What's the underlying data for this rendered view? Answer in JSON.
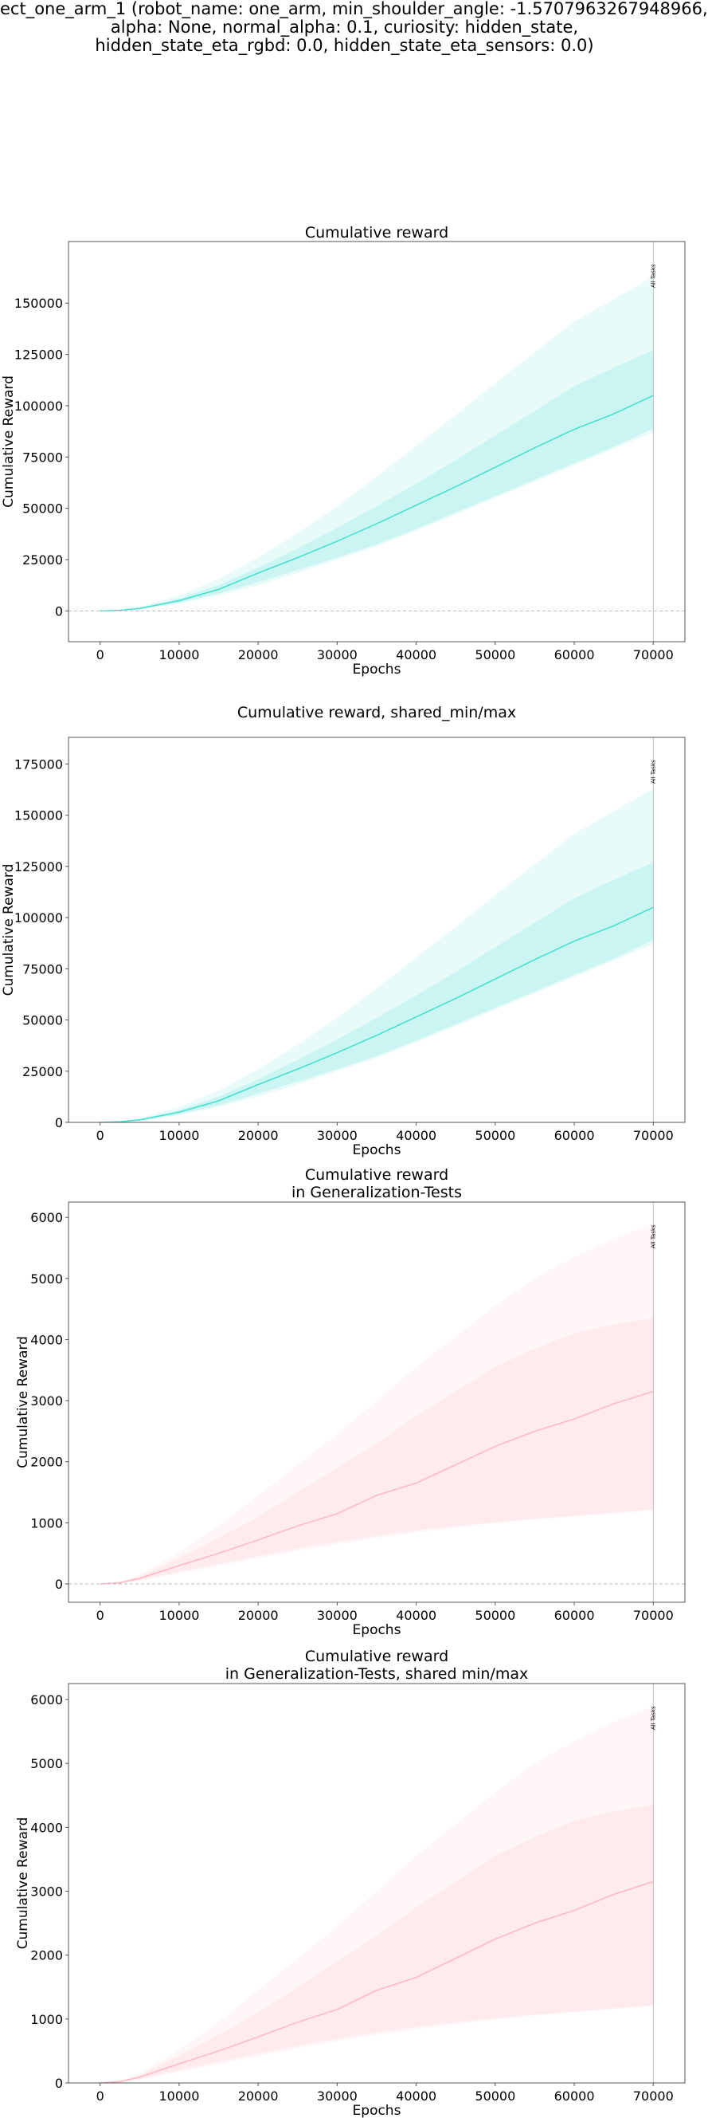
{
  "figure": {
    "suptitle_lines": [
      "ect_one_arm_1 (robot_name: one_arm, min_shoulder_angle: -1.5707963267948966,",
      "alpha: None, normal_alpha: 0.1, curiosity: hidden_state,",
      "hidden_state_eta_rgbd: 0.0, hidden_state_eta_sensors: 0.0)"
    ],
    "colors": {
      "train_line": "#40e0d0",
      "test_line": "#ffb6c1",
      "axis": "#555555",
      "zero_line": "#bbbbbb",
      "marker_line": "#bbbbbb"
    }
  },
  "chart_data": [
    {
      "type": "line",
      "title_lines": [
        "Cumulative reward"
      ],
      "xlabel": "Epochs",
      "ylabel": "Cumulative Reward",
      "xlim": [
        -4000,
        74000
      ],
      "ylim": [
        -15000,
        180000
      ],
      "xticks": [
        0,
        10000,
        20000,
        30000,
        40000,
        50000,
        60000,
        70000
      ],
      "yticks": [
        0,
        25000,
        50000,
        75000,
        100000,
        125000,
        150000
      ],
      "zero_line": true,
      "marker": {
        "x": 70000,
        "label": "All Tasks"
      },
      "series": [
        {
          "name": "Cumulative reward",
          "color": "#40e0d0",
          "x": [
            0,
            2500,
            5000,
            10000,
            15000,
            20000,
            25000,
            30000,
            35000,
            40000,
            45000,
            50000,
            55000,
            60000,
            65000,
            70000
          ],
          "mean": [
            0,
            300,
            1200,
            5000,
            10500,
            18500,
            26000,
            34000,
            42500,
            51500,
            60500,
            70000,
            79500,
            88500,
            96000,
            105000
          ],
          "band_inner": {
            "lower": [
              0,
              200,
              900,
              4000,
              8500,
              14000,
              20000,
              26000,
              32500,
              40000,
              48000,
              56000,
              64000,
              72000,
              80000,
              89000
            ],
            "upper": [
              0,
              400,
              1500,
              6000,
              12500,
              21000,
              30500,
              40500,
              51000,
              62000,
              73500,
              85500,
              97500,
              109500,
              118500,
              127000
            ]
          },
          "band_outer": {
            "lower": [
              0,
              150,
              700,
              3500,
              7500,
              12500,
              18500,
              25000,
              31500,
              39000,
              47000,
              55000,
              63000,
              71000,
              79000,
              87000
            ],
            "upper": [
              0,
              500,
              2000,
              7500,
              15500,
              26000,
              38000,
              51000,
              65500,
              80500,
              95500,
              111000,
              126000,
              141000,
              152000,
              163000
            ]
          }
        }
      ]
    },
    {
      "type": "line",
      "title_lines": [
        "Cumulative reward, shared_min/max"
      ],
      "xlabel": "Epochs",
      "ylabel": "Cumulative Reward",
      "xlim": [
        -4000,
        74000
      ],
      "ylim": [
        0,
        188000
      ],
      "xticks": [
        0,
        10000,
        20000,
        30000,
        40000,
        50000,
        60000,
        70000
      ],
      "yticks": [
        0,
        25000,
        50000,
        75000,
        100000,
        125000,
        150000,
        175000
      ],
      "zero_line": false,
      "marker": {
        "x": 70000,
        "label": "All Tasks"
      },
      "series": [
        {
          "name": "Cumulative reward",
          "color": "#40e0d0",
          "x": [
            0,
            2500,
            5000,
            10000,
            15000,
            20000,
            25000,
            30000,
            35000,
            40000,
            45000,
            50000,
            55000,
            60000,
            65000,
            70000
          ],
          "mean": [
            0,
            300,
            1200,
            5000,
            10500,
            18500,
            26000,
            34000,
            42500,
            51500,
            60500,
            70000,
            79500,
            88500,
            96000,
            105000
          ],
          "band_inner": {
            "lower": [
              0,
              200,
              900,
              4000,
              8500,
              14000,
              20000,
              26000,
              32500,
              40000,
              48000,
              56000,
              64000,
              72000,
              80000,
              89000
            ],
            "upper": [
              0,
              400,
              1500,
              6000,
              12500,
              21000,
              30500,
              40500,
              51000,
              62000,
              73500,
              85500,
              97500,
              109500,
              118500,
              127000
            ]
          },
          "band_outer": {
            "lower": [
              0,
              150,
              700,
              3500,
              7500,
              12500,
              18500,
              25000,
              31500,
              39000,
              47000,
              55000,
              63000,
              71000,
              79000,
              87000
            ],
            "upper": [
              0,
              500,
              2000,
              7500,
              15500,
              26000,
              38000,
              51000,
              65500,
              80500,
              95500,
              111000,
              126000,
              141000,
              152000,
              163000
            ]
          }
        }
      ]
    },
    {
      "type": "line",
      "title_lines": [
        "Cumulative reward",
        "in Generalization-Tests"
      ],
      "xlabel": "Epochs",
      "ylabel": "Cumulative Reward",
      "xlim": [
        -4000,
        74000
      ],
      "ylim": [
        -300,
        6250
      ],
      "xticks": [
        0,
        10000,
        20000,
        30000,
        40000,
        50000,
        60000,
        70000
      ],
      "yticks": [
        0,
        1000,
        2000,
        3000,
        4000,
        5000,
        6000
      ],
      "zero_line": true,
      "marker": {
        "x": 70000,
        "label": "All Tasks"
      },
      "series": [
        {
          "name": "Cumulative reward in Generalization-Tests",
          "color": "#ffb6c1",
          "x": [
            0,
            2500,
            5000,
            10000,
            15000,
            20000,
            25000,
            30000,
            35000,
            40000,
            45000,
            50000,
            55000,
            60000,
            65000,
            70000
          ],
          "mean": [
            0,
            20,
            90,
            300,
            500,
            720,
            950,
            1150,
            1450,
            1650,
            1950,
            2250,
            2500,
            2700,
            2950,
            3150
          ],
          "band_inner": {
            "lower": [
              0,
              15,
              60,
              200,
              330,
              460,
              580,
              690,
              790,
              880,
              950,
              1010,
              1070,
              1120,
              1170,
              1220
            ],
            "upper": [
              0,
              25,
              120,
              420,
              750,
              1100,
              1500,
              1900,
              2300,
              2750,
              3150,
              3550,
              3850,
              4100,
              4250,
              4350
            ]
          },
          "band_outer": {
            "lower": [
              0,
              10,
              50,
              170,
              290,
              420,
              540,
              650,
              750,
              840,
              920,
              990,
              1050,
              1100,
              1150,
              1200
            ],
            "upper": [
              0,
              30,
              150,
              520,
              950,
              1450,
              1950,
              2450,
              3000,
              3550,
              4050,
              4550,
              5000,
              5350,
              5650,
              5900
            ]
          }
        }
      ]
    },
    {
      "type": "line",
      "title_lines": [
        "Cumulative reward",
        "in Generalization-Tests, shared min/max"
      ],
      "xlabel": "Epochs",
      "ylabel": "Cumulative Reward",
      "xlim": [
        -4000,
        74000
      ],
      "ylim": [
        0,
        6250
      ],
      "xticks": [
        0,
        10000,
        20000,
        30000,
        40000,
        50000,
        60000,
        70000
      ],
      "yticks": [
        0,
        1000,
        2000,
        3000,
        4000,
        5000,
        6000
      ],
      "zero_line": false,
      "marker": {
        "x": 70000,
        "label": "All Tasks"
      },
      "series": [
        {
          "name": "Cumulative reward in Generalization-Tests",
          "color": "#ffb6c1",
          "x": [
            0,
            2500,
            5000,
            10000,
            15000,
            20000,
            25000,
            30000,
            35000,
            40000,
            45000,
            50000,
            55000,
            60000,
            65000,
            70000
          ],
          "mean": [
            0,
            20,
            90,
            300,
            500,
            720,
            950,
            1150,
            1450,
            1650,
            1950,
            2250,
            2500,
            2700,
            2950,
            3150
          ],
          "band_inner": {
            "lower": [
              0,
              15,
              60,
              200,
              330,
              460,
              580,
              690,
              790,
              880,
              950,
              1010,
              1070,
              1120,
              1170,
              1220
            ],
            "upper": [
              0,
              25,
              120,
              420,
              750,
              1100,
              1500,
              1900,
              2300,
              2750,
              3150,
              3550,
              3850,
              4100,
              4250,
              4350
            ]
          },
          "band_outer": {
            "lower": [
              0,
              10,
              50,
              170,
              290,
              420,
              540,
              650,
              750,
              840,
              920,
              990,
              1050,
              1100,
              1150,
              1200
            ],
            "upper": [
              0,
              30,
              150,
              520,
              950,
              1450,
              1950,
              2450,
              3000,
              3550,
              4050,
              4550,
              5000,
              5350,
              5650,
              5900
            ]
          }
        }
      ]
    }
  ]
}
